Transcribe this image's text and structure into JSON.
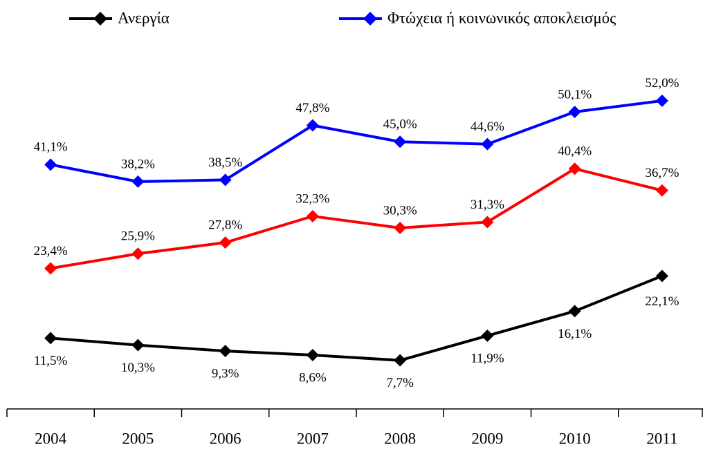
{
  "chart_data": {
    "type": "line",
    "categories": [
      "2004",
      "2005",
      "2006",
      "2007",
      "2008",
      "2009",
      "2010",
      "2011"
    ],
    "series": [
      {
        "name": "Ανεργία",
        "color": "#000000",
        "values": [
          11.5,
          10.3,
          9.3,
          8.6,
          7.7,
          11.9,
          16.1,
          22.1
        ],
        "value_labels": [
          "11,5%",
          "10,3%",
          "9,3%",
          "8,6%",
          "7,7%",
          "11,9%",
          "16,1%",
          "22,1%"
        ]
      },
      {
        "name": "Φτώχεια ή κοινωνικός αποκλεισμός",
        "color": "#0000ff",
        "values": [
          41.1,
          38.2,
          38.5,
          47.8,
          45.0,
          44.6,
          50.1,
          52.0
        ],
        "value_labels": [
          "41,1%",
          "38,2%",
          "38,5%",
          "47,8%",
          "45,0%",
          "44,6%",
          "50,1%",
          "52,0%"
        ]
      },
      {
        "color": "#ff0000",
        "values": [
          23.4,
          25.9,
          27.8,
          32.3,
          30.3,
          31.3,
          40.4,
          36.7
        ],
        "value_labels": [
          "23,4%",
          "25,9%",
          "27,8%",
          "32,3%",
          "30,3%",
          "31,3%",
          "40,4%",
          "36,7%"
        ]
      }
    ],
    "ylim": [
      0,
      60
    ],
    "legend": "top"
  }
}
